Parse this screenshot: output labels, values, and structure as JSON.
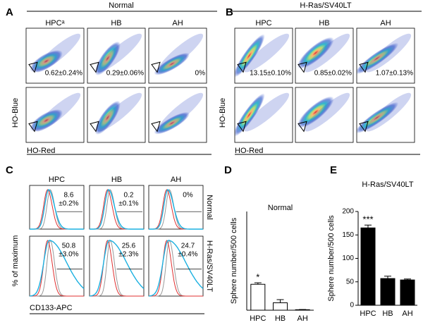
{
  "panels": {
    "A": {
      "letter": "A",
      "title": "Normal",
      "columns": [
        "HPCᵃ",
        "HB",
        "AH"
      ],
      "percentages": [
        "0.62±0.24%",
        "0.29±0.06%",
        "0%"
      ],
      "y_label": "HO-Blue",
      "x_label": "HO-Red"
    },
    "B": {
      "letter": "B",
      "title": "H-Ras/SV40LT",
      "columns": [
        "HPC",
        "HB",
        "AH"
      ],
      "percentages": [
        "13.15±0.10%",
        "0.85±0.02%",
        "1.07±0.13%"
      ],
      "y_label": "HO-Blue",
      "x_label": "HO-Red"
    },
    "C": {
      "letter": "C",
      "columns": [
        "HPC",
        "HB",
        "AH"
      ],
      "rows": [
        "Normal",
        "H-Ras/SV40LT"
      ],
      "percentages": [
        [
          [
            "8.6",
            "±0.2%"
          ],
          [
            "0.2",
            "±0.1%"
          ],
          [
            "0%"
          ]
        ],
        [
          [
            "50.8",
            "±3.0%"
          ],
          [
            "25.6",
            "±2.3%"
          ],
          [
            "24.7",
            "±0.4%"
          ]
        ]
      ],
      "y_label": "% of maximum",
      "x_label": "CD133-APC"
    },
    "D": {
      "letter": "D"
    },
    "E": {
      "letter": "E"
    }
  },
  "chart_data": [
    {
      "type": "bar",
      "title": "Normal",
      "y_label": "Sphere number/500 cells",
      "categories": [
        "HPC",
        "HB",
        "AH"
      ],
      "values": [
        1.05,
        0.3,
        0.02
      ],
      "errors": [
        0.06,
        0.13,
        0.01
      ],
      "value_annotations": [
        "*",
        null,
        null
      ],
      "color": "#ffffff",
      "ylim": [
        0,
        4
      ]
    },
    {
      "type": "bar",
      "title": "H-Ras/SV40LT",
      "y_label": "Sphere number/500 cells",
      "categories": [
        "HPC",
        "HB",
        "AH"
      ],
      "values": [
        165,
        57,
        54
      ],
      "errors": [
        6,
        5,
        2
      ],
      "value_annotations": [
        "***",
        null,
        null
      ],
      "color": "#000000",
      "ylim": [
        0,
        200
      ],
      "yticks": [
        0,
        50,
        100,
        150,
        200
      ]
    }
  ]
}
